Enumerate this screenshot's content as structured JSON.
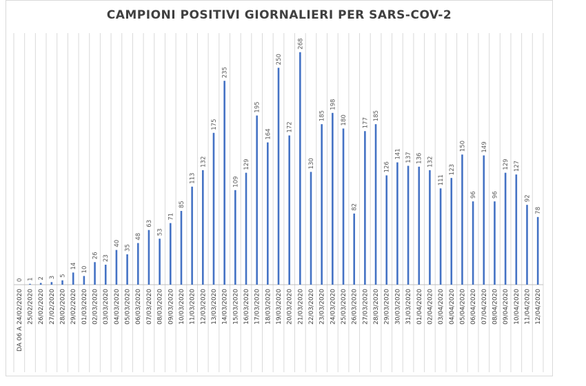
{
  "chart_data": {
    "type": "bar",
    "title": "CAMPIONI POSITIVI GIORNALIERI PER SARS-COV-2",
    "xlabel": "",
    "ylabel": "",
    "ylim": [
      0,
      290
    ],
    "grid": true,
    "legend": "none",
    "bar_color": "#4472c4",
    "categories": [
      "DA 06 A 24/02/2020",
      "25/02/2020",
      "26/02/2020",
      "27/02/2020",
      "28/02/2020",
      "29/02/2020",
      "01/03/2020",
      "02/03/2020",
      "03/03/2020",
      "04/03/2020",
      "05/03/2020",
      "06/03/2020",
      "07/03/2020",
      "08/03/2020",
      "09/03/2020",
      "10/03/2020",
      "11/03/2020",
      "12/03/2020",
      "13/03/2020",
      "14/03/2020",
      "15/03/2020",
      "16/03/2020",
      "17/03/2020",
      "18/03/2020",
      "19/03/2020",
      "20/03/2020",
      "21/03/2020",
      "22/03/2020",
      "23/03/2020",
      "24/03/2020",
      "25/03/2020",
      "26/03/2020",
      "27/03/2020",
      "28/03/2020",
      "29/03/2020",
      "30/03/2020",
      "31/03/2020",
      "01/04/2020",
      "02/04/2020",
      "03/04/2020",
      "04/04/2020",
      "05/04/2020",
      "06/04/2020",
      "07/04/2020",
      "08/04/2020",
      "09/04/2020",
      "10/04/2020",
      "11/04/2020",
      "12/04/2020"
    ],
    "values": [
      0,
      1,
      2,
      3,
      5,
      14,
      10,
      26,
      23,
      40,
      35,
      48,
      63,
      53,
      71,
      85,
      113,
      132,
      175,
      235,
      109,
      129,
      195,
      164,
      250,
      172,
      268,
      130,
      185,
      198,
      180,
      82,
      177,
      185,
      126,
      141,
      137,
      136,
      132,
      111,
      123,
      150,
      96,
      149,
      96,
      129,
      127,
      92,
      78
    ]
  }
}
